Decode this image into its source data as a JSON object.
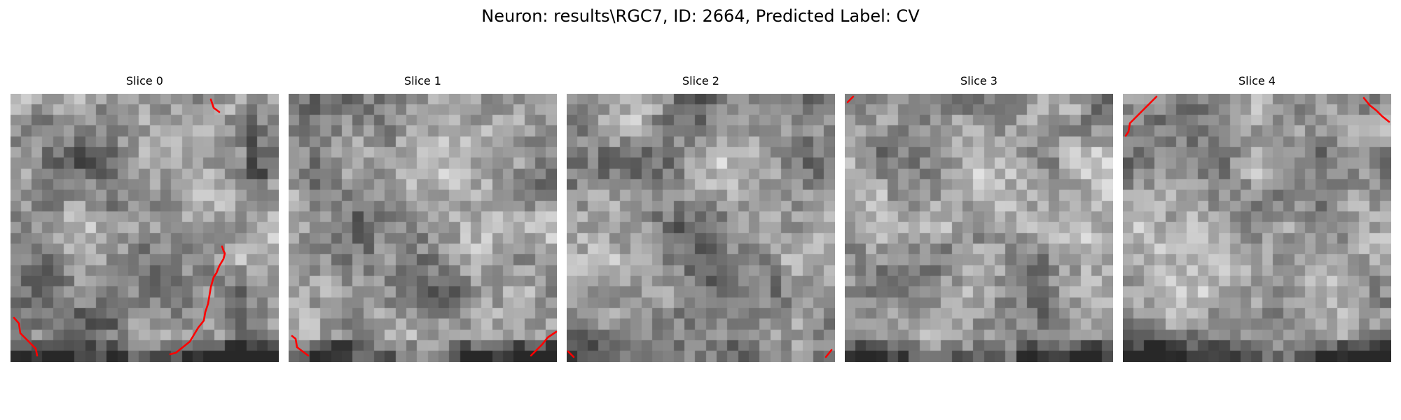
{
  "figure": {
    "title": "Neuron: results\\RGC7, ID: 2664, Predicted Label: CV"
  },
  "slices": [
    {
      "title": "Slice 0"
    },
    {
      "title": "Slice 1"
    },
    {
      "title": "Slice 2"
    },
    {
      "title": "Slice 3"
    },
    {
      "title": "Slice 4"
    }
  ],
  "style": {
    "contour_color": "#ff0000",
    "colormap": "grayscale"
  }
}
